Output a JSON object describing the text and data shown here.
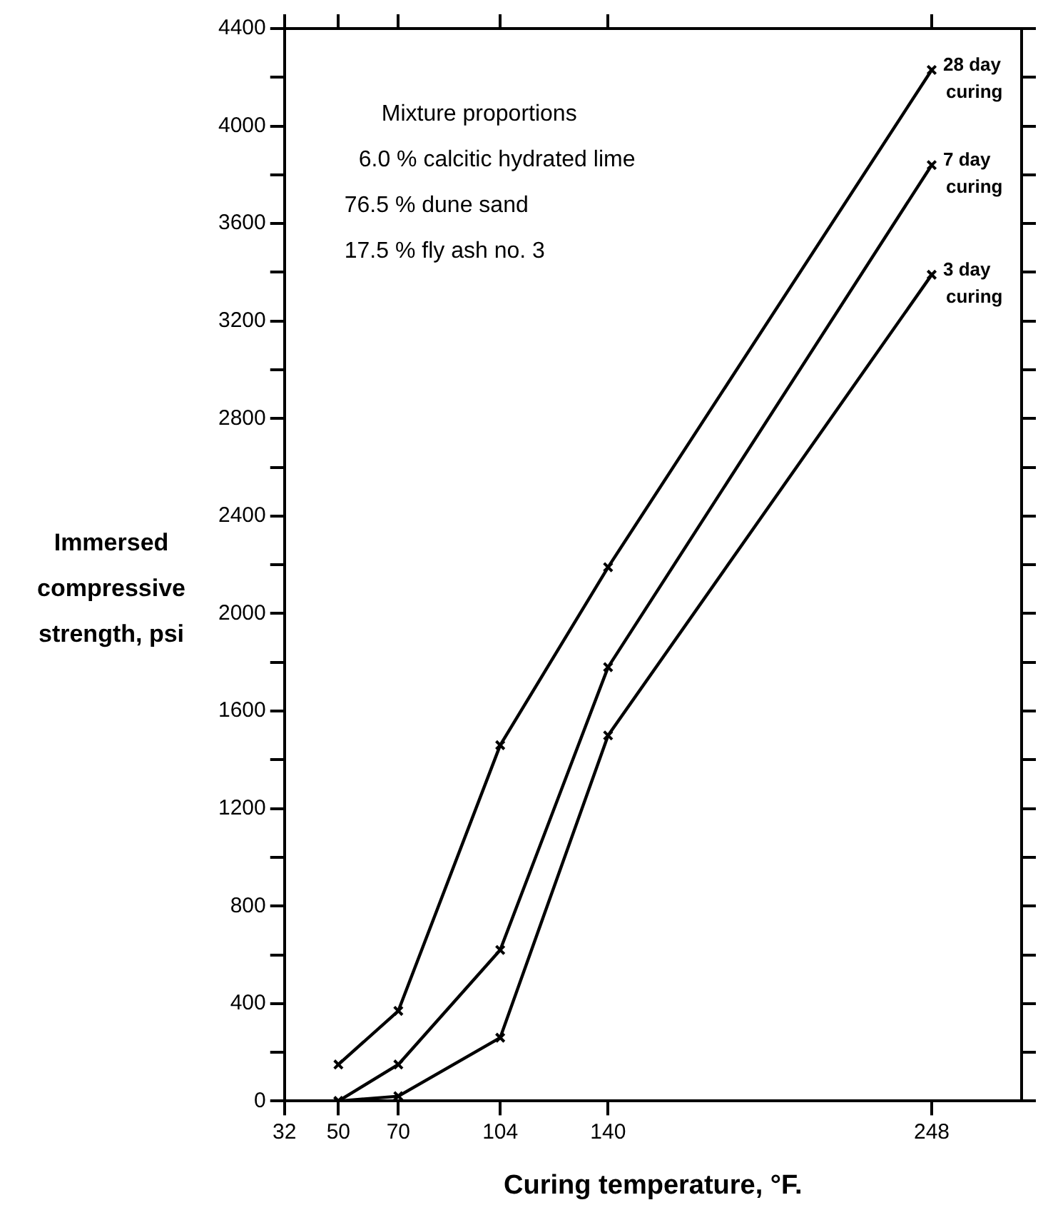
{
  "chart_data": {
    "type": "line",
    "xlabel": "Curing temperature, °F.",
    "ylabel": "Immersed compressive strength, psi",
    "x": [
      50,
      70,
      104,
      140,
      248
    ],
    "series": [
      {
        "name": "28 day curing",
        "color": "#000000",
        "values": [
          150,
          370,
          1460,
          2190,
          4230
        ]
      },
      {
        "name": "7 day curing",
        "color": "#000000",
        "values": [
          0,
          150,
          620,
          1780,
          3840
        ]
      },
      {
        "name": "3 day curing",
        "color": "#000000",
        "values": [
          0,
          20,
          260,
          1500,
          3390
        ]
      }
    ],
    "xlim": [
      32,
      278
    ],
    "xticks": [
      32,
      50,
      70,
      104,
      140,
      248
    ],
    "ylim": [
      0,
      4400
    ],
    "yticks": [
      0,
      {
        "value": 200,
        "label": null
      },
      400,
      {
        "value": 600,
        "label": null
      },
      800,
      {
        "value": 1000,
        "label": null
      },
      1200,
      {
        "value": 1400,
        "label": null
      },
      1600,
      {
        "value": 1800,
        "label": null
      },
      2000,
      {
        "value": 2200,
        "label": null
      },
      2400,
      {
        "value": 2600,
        "label": null
      },
      2800,
      {
        "value": 3000,
        "label": null
      },
      3200,
      {
        "value": 3400,
        "label": null
      },
      3600,
      {
        "value": 3800,
        "label": null
      },
      4000,
      {
        "value": 4200,
        "label": null
      },
      4400
    ],
    "annotations": [
      "Mixture proportions",
      "6.0 % calcitic hydrated lime",
      "76.5 % dune sand",
      "17.5 % fly ash no. 3"
    ],
    "grid": false,
    "legend": "top right",
    "marker": "cross",
    "line_style": "solid"
  }
}
